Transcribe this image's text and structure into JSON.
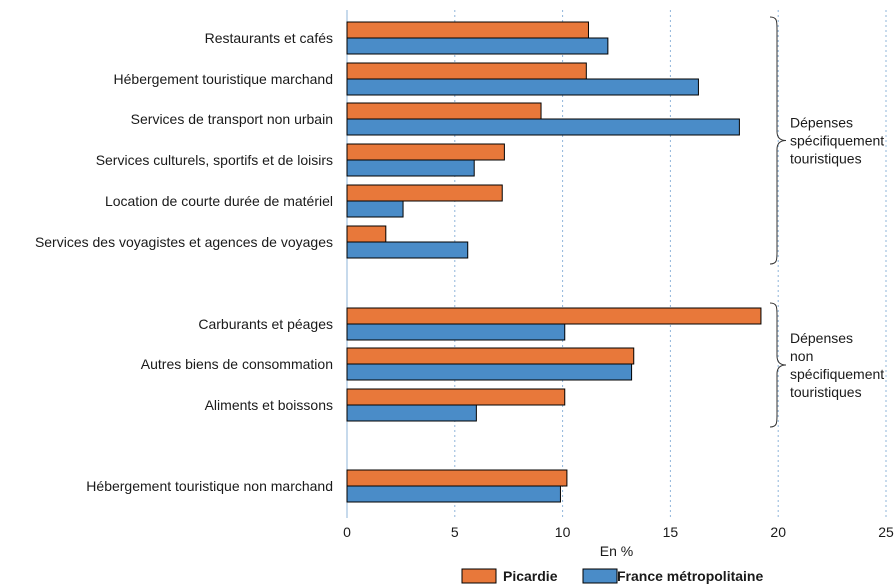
{
  "chart_data": {
    "type": "bar",
    "orientation": "horizontal",
    "xlabel": "En %",
    "xlim": [
      0,
      25
    ],
    "xticks": [
      0,
      5,
      10,
      15,
      20,
      25
    ],
    "grid": "vertical dashed",
    "legend_position": "bottom",
    "categories": [
      "Restaurants et cafés",
      "Hébergement touristique marchand",
      "Services de transport non urbain",
      "Services culturels, sportifs et de loisirs",
      "Location de courte durée de matériel",
      "Services des voyagistes et agences de voyages",
      "Carburants et péages",
      "Autres biens de consommation",
      "Aliments et boissons",
      "Hébergement touristique non marchand"
    ],
    "series": [
      {
        "name": "Picardie",
        "color": "#e8783a",
        "values": [
          11.2,
          11.1,
          9.0,
          7.3,
          7.2,
          1.8,
          19.2,
          13.3,
          10.1,
          10.2
        ]
      },
      {
        "name": "France métropolitaine",
        "color": "#4a8cc8",
        "values": [
          12.1,
          16.3,
          18.2,
          5.9,
          2.6,
          5.6,
          10.1,
          13.2,
          6.0,
          9.9
        ]
      }
    ],
    "groups": [
      {
        "lines": [
          "Dépenses",
          "spécifiquement",
          "touristiques"
        ],
        "categories": [
          0,
          1,
          2,
          3,
          4,
          5
        ]
      },
      {
        "lines": [
          "Dépenses",
          "non",
          "spécifiquement",
          "touristiques"
        ],
        "categories": [
          6,
          7,
          8
        ]
      }
    ]
  }
}
